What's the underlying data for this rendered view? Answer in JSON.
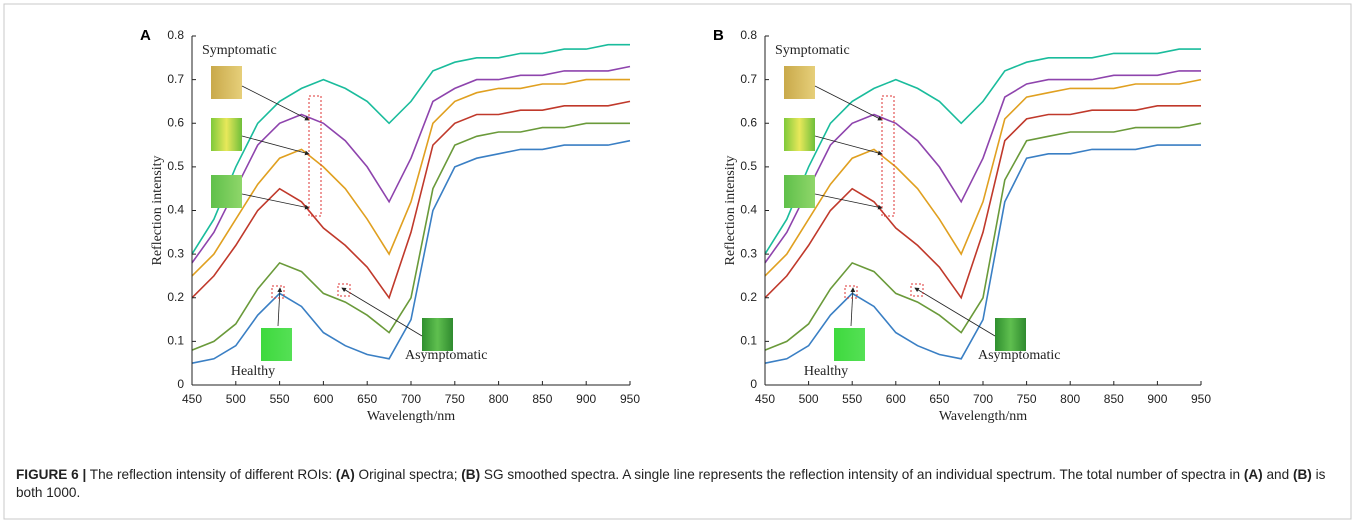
{
  "chart_data": [
    {
      "type": "line",
      "panel": "A",
      "xlabel": "Wavelength/nm",
      "ylabel": "Reflection intensity",
      "annotations": [
        "Symptomatic",
        "Healthy",
        "Asymptomatic"
      ],
      "xlim": [
        450,
        950
      ],
      "xticks": [
        450,
        500,
        550,
        600,
        650,
        700,
        750,
        800,
        850,
        900,
        950
      ],
      "ylim": [
        0,
        0.8
      ],
      "yticks": [
        0,
        0.1,
        0.2,
        0.3,
        0.4,
        0.5,
        0.6,
        0.7,
        0.8
      ],
      "x": [
        450,
        475,
        500,
        525,
        550,
        575,
        600,
        625,
        650,
        675,
        700,
        725,
        750,
        775,
        800,
        825,
        850,
        875,
        900,
        925,
        950
      ],
      "series": [
        {
          "color": "#3a7fc4",
          "values": [
            0.05,
            0.06,
            0.09,
            0.16,
            0.21,
            0.18,
            0.12,
            0.09,
            0.07,
            0.06,
            0.15,
            0.4,
            0.5,
            0.52,
            0.53,
            0.54,
            0.54,
            0.55,
            0.55,
            0.55,
            0.56
          ]
        },
        {
          "color": "#6a9a3a",
          "values": [
            0.08,
            0.1,
            0.14,
            0.22,
            0.28,
            0.26,
            0.21,
            0.19,
            0.16,
            0.12,
            0.2,
            0.45,
            0.55,
            0.57,
            0.58,
            0.58,
            0.59,
            0.59,
            0.6,
            0.6,
            0.6
          ]
        },
        {
          "color": "#c0392b",
          "values": [
            0.2,
            0.25,
            0.32,
            0.4,
            0.45,
            0.42,
            0.36,
            0.32,
            0.27,
            0.2,
            0.35,
            0.55,
            0.6,
            0.62,
            0.62,
            0.63,
            0.63,
            0.64,
            0.64,
            0.64,
            0.65
          ]
        },
        {
          "color": "#e0a020",
          "values": [
            0.25,
            0.3,
            0.38,
            0.46,
            0.52,
            0.54,
            0.5,
            0.45,
            0.38,
            0.3,
            0.42,
            0.6,
            0.65,
            0.67,
            0.68,
            0.68,
            0.69,
            0.69,
            0.7,
            0.7,
            0.7
          ]
        },
        {
          "color": "#8e44ad",
          "values": [
            0.28,
            0.35,
            0.45,
            0.55,
            0.6,
            0.62,
            0.6,
            0.56,
            0.5,
            0.42,
            0.52,
            0.65,
            0.68,
            0.7,
            0.7,
            0.71,
            0.71,
            0.72,
            0.72,
            0.72,
            0.73
          ]
        },
        {
          "color": "#1abc9c",
          "values": [
            0.3,
            0.38,
            0.5,
            0.6,
            0.65,
            0.68,
            0.7,
            0.68,
            0.65,
            0.6,
            0.65,
            0.72,
            0.74,
            0.75,
            0.75,
            0.76,
            0.76,
            0.77,
            0.77,
            0.78,
            0.78
          ]
        }
      ]
    },
    {
      "type": "line",
      "panel": "B",
      "xlabel": "Wavelength/nm",
      "ylabel": "Reflection intensity",
      "annotations": [
        "Symptomatic",
        "Healthy",
        "Asymptomatic"
      ],
      "xlim": [
        450,
        950
      ],
      "xticks": [
        450,
        500,
        550,
        600,
        650,
        700,
        750,
        800,
        850,
        900,
        950
      ],
      "ylim": [
        0,
        0.8
      ],
      "yticks": [
        0,
        0.1,
        0.2,
        0.3,
        0.4,
        0.5,
        0.6,
        0.7,
        0.8
      ],
      "x": [
        450,
        475,
        500,
        525,
        550,
        575,
        600,
        625,
        650,
        675,
        700,
        725,
        750,
        775,
        800,
        825,
        850,
        875,
        900,
        925,
        950
      ],
      "series": [
        {
          "color": "#3a7fc4",
          "values": [
            0.05,
            0.06,
            0.09,
            0.16,
            0.21,
            0.18,
            0.12,
            0.09,
            0.07,
            0.06,
            0.15,
            0.42,
            0.52,
            0.53,
            0.53,
            0.54,
            0.54,
            0.54,
            0.55,
            0.55,
            0.55
          ]
        },
        {
          "color": "#6a9a3a",
          "values": [
            0.08,
            0.1,
            0.14,
            0.22,
            0.28,
            0.26,
            0.21,
            0.19,
            0.16,
            0.12,
            0.2,
            0.47,
            0.56,
            0.57,
            0.58,
            0.58,
            0.58,
            0.59,
            0.59,
            0.59,
            0.6
          ]
        },
        {
          "color": "#c0392b",
          "values": [
            0.2,
            0.25,
            0.32,
            0.4,
            0.45,
            0.42,
            0.36,
            0.32,
            0.27,
            0.2,
            0.35,
            0.56,
            0.61,
            0.62,
            0.62,
            0.63,
            0.63,
            0.63,
            0.64,
            0.64,
            0.64
          ]
        },
        {
          "color": "#e0a020",
          "values": [
            0.25,
            0.3,
            0.38,
            0.46,
            0.52,
            0.54,
            0.5,
            0.45,
            0.38,
            0.3,
            0.42,
            0.61,
            0.66,
            0.67,
            0.68,
            0.68,
            0.68,
            0.69,
            0.69,
            0.69,
            0.7
          ]
        },
        {
          "color": "#8e44ad",
          "values": [
            0.28,
            0.35,
            0.45,
            0.55,
            0.6,
            0.62,
            0.6,
            0.56,
            0.5,
            0.42,
            0.52,
            0.66,
            0.69,
            0.7,
            0.7,
            0.7,
            0.71,
            0.71,
            0.71,
            0.72,
            0.72
          ]
        },
        {
          "color": "#1abc9c",
          "values": [
            0.3,
            0.38,
            0.5,
            0.6,
            0.65,
            0.68,
            0.7,
            0.68,
            0.65,
            0.6,
            0.65,
            0.72,
            0.74,
            0.75,
            0.75,
            0.75,
            0.76,
            0.76,
            0.76,
            0.77,
            0.77
          ]
        }
      ]
    }
  ],
  "caption": [
    {
      "text": "FIGURE 6 |",
      "bold": true
    },
    {
      "text": " The reflection intensity of different ROIs: ",
      "bold": false
    },
    {
      "text": "(A)",
      "bold": true
    },
    {
      "text": " Original spectra; ",
      "bold": false
    },
    {
      "text": "(B)",
      "bold": true
    },
    {
      "text": " SG smoothed spectra. A single line represents the reflection intensity of an individual spectrum. The total number of spectra in ",
      "bold": false
    },
    {
      "text": "(A)",
      "bold": true
    },
    {
      "text": " and ",
      "bold": false
    },
    {
      "text": "(B)",
      "bold": true
    },
    {
      "text": " is both 1000.",
      "bold": false
    }
  ]
}
